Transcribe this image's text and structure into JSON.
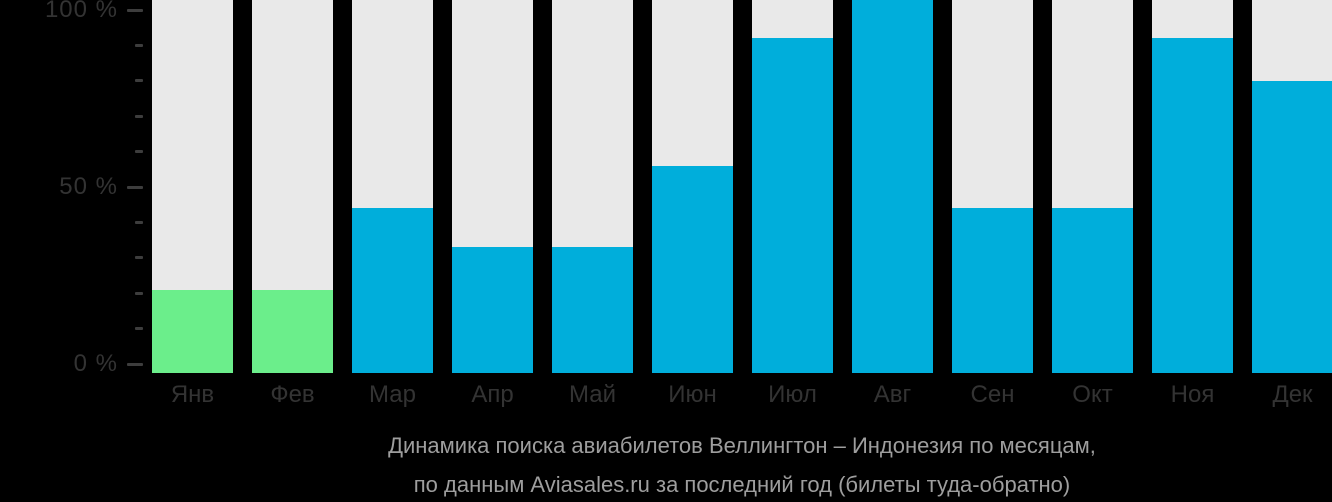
{
  "chart_data": {
    "type": "bar",
    "title": "Динамика поиска авиабилетов Веллингтон – Индонезия по месяцам, по данным Aviasales.ru за последний год (билеты туда-обратно)",
    "categories": [
      "Янв",
      "Фев",
      "Мар",
      "Апр",
      "Май",
      "Июн",
      "Июл",
      "Авг",
      "Сен",
      "Окт",
      "Ноя",
      "Дек"
    ],
    "values": [
      21,
      21,
      44,
      33,
      33,
      56,
      92,
      100,
      44,
      44,
      92,
      80
    ],
    "ylabel": "",
    "xlabel": "",
    "ylim": [
      0,
      100
    ],
    "y_tick_labels": [
      {
        "label": "0 %",
        "value": 0
      },
      {
        "label": "50 %",
        "value": 50
      },
      {
        "label": "100 %",
        "value": 100
      }
    ],
    "y_minor_step": 10,
    "grid": false,
    "legend": "none",
    "bar_colors": [
      "green",
      "green",
      "cyan",
      "cyan",
      "cyan",
      "cyan",
      "cyan",
      "cyan",
      "cyan",
      "cyan",
      "cyan",
      "cyan"
    ],
    "colors": {
      "background": "#000000",
      "track": "#E9E9E9",
      "cyan": "#00AEDB",
      "green": "#6BEE8B",
      "axis_text": "#333333",
      "tick_mark": "#3D3D3D",
      "footer_text": "#9E9E9E"
    }
  },
  "footer": {
    "line1": "Динамика поиска авиабилетов Веллингтон – Индонезия по месяцам,",
    "line2": "по данным Aviasales.ru за последний год (билеты туда-обратно)"
  }
}
